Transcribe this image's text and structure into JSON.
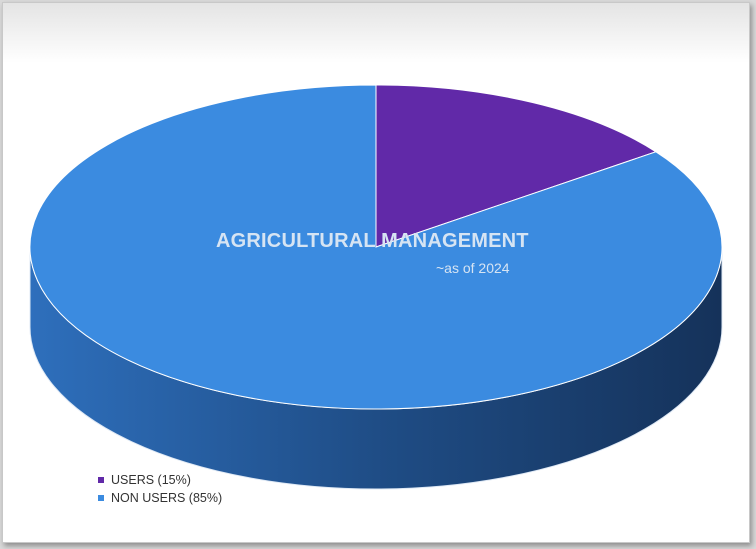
{
  "chart_data": {
    "type": "pie",
    "title": "AGRICULTURAL MANAGEMENT",
    "subtitle": "~as of 2024",
    "slices": [
      {
        "label": "USERS (15%)",
        "value": 15,
        "color": "#6129a8"
      },
      {
        "label": "NON USERS (85%)",
        "value": 85,
        "color": "#3b8be0"
      }
    ],
    "legend_position": "bottom-left",
    "style": "3d"
  }
}
